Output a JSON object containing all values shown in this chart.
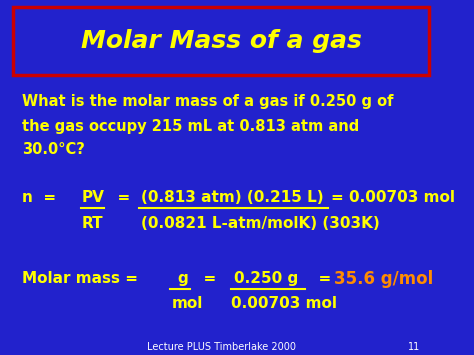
{
  "bg_color": "#2222CC",
  "title": "Molar Mass of a gas",
  "title_color": "#FFFF00",
  "title_box_edge_color": "#CC0000",
  "title_box_face_color": "#2222CC",
  "body_color": "#FFFF00",
  "highlight_color": "#FF8C00",
  "footer_text": "Lecture PLUS Timberlake 2000",
  "page_number": "11",
  "question_line1": "What is the molar mass of a gas if 0.250 g of",
  "question_line2": "the gas occupy 215 mL at 0.813 atm and",
  "question_line3": "30.0°C?",
  "eq_pv_numerator": "(0.813 atm) (0.215 L)",
  "eq_pv_result": "= 0.00703 mol",
  "eq_rt_denominator": "(0.0821 L-atm/molK) (303K)",
  "mm_result": "35.6 g/mol",
  "mm_den": "0.00703 mol"
}
